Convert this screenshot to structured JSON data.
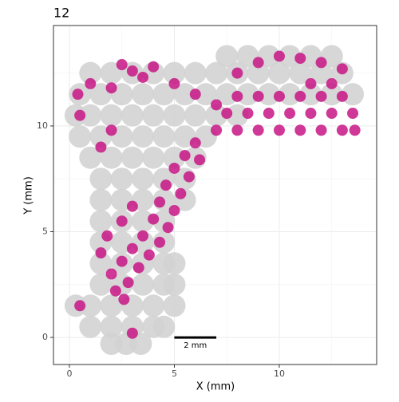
{
  "chart_data": {
    "type": "scatter",
    "title": "12",
    "x_label": "X (mm)",
    "y_label": "Y (mm)",
    "xlim": [
      -0.76,
      14.64
    ],
    "ylim": [
      -1.28,
      14.75
    ],
    "xticks": [
      0,
      5,
      10
    ],
    "yticks": [
      0,
      5,
      10
    ],
    "minor_xticks": [
      2.5,
      7.5,
      12.5
    ],
    "minor_yticks": [
      2.5,
      7.5,
      12.5
    ],
    "grid": true,
    "series": [
      {
        "color": "#d3d3d3",
        "x": [
          7.5,
          8.5,
          9.5,
          10.5,
          11.5,
          12.5,
          1,
          2,
          3,
          4,
          5,
          6,
          7,
          8,
          9,
          10,
          11,
          12,
          13,
          0.5,
          1.5,
          2.5,
          3.5,
          4.5,
          5.5,
          6.5,
          7.5,
          8.5,
          9.5,
          10.5,
          11.5,
          12.5,
          13.5,
          0.3,
          1,
          2,
          3,
          4,
          5,
          6,
          7,
          8,
          0.5,
          1.5,
          2.5,
          3.5,
          4.5,
          5.5,
          6.5,
          1,
          2,
          3,
          4,
          5,
          6,
          1.5,
          2.5,
          3.5,
          4.5,
          5.5,
          1.5,
          2.5,
          3.5,
          4.5,
          5.5,
          1.5,
          2.5,
          3.5,
          4.5,
          1.5,
          2.5,
          3.5,
          4.5,
          1.5,
          2.5,
          3.5,
          4.5,
          5,
          1.5,
          2.5,
          3.5,
          4.5,
          5,
          0.3,
          1,
          2,
          3,
          4,
          5,
          1,
          2,
          3,
          4,
          4.5,
          2,
          2.7,
          3.4
        ],
        "y": [
          13.3,
          13.3,
          13.3,
          13.3,
          13.3,
          13.3,
          12.5,
          12.5,
          12.5,
          12.5,
          12.5,
          12.5,
          12.5,
          12.5,
          12.5,
          12.5,
          12.5,
          12.5,
          12.5,
          11.5,
          11.5,
          11.5,
          11.5,
          11.5,
          11.5,
          11.5,
          11.5,
          11.5,
          11.5,
          11.5,
          11.5,
          11.5,
          11.5,
          10.5,
          10.5,
          10.5,
          10.5,
          10.5,
          10.5,
          10.5,
          10.5,
          10.5,
          9.5,
          9.5,
          9.5,
          9.5,
          9.5,
          9.5,
          9.5,
          8.5,
          8.5,
          8.5,
          8.5,
          8.5,
          8.5,
          7.5,
          7.5,
          7.5,
          7.5,
          7.5,
          6.5,
          6.5,
          6.5,
          6.5,
          6.5,
          5.5,
          5.5,
          5.5,
          5.5,
          4.5,
          4.5,
          4.5,
          4.5,
          3.5,
          3.5,
          3.5,
          3.5,
          3.5,
          2.5,
          2.5,
          2.5,
          2.5,
          2.5,
          1.5,
          1.5,
          1.5,
          1.5,
          1.5,
          1.5,
          0.5,
          0.5,
          0.5,
          0.5,
          0.5,
          -0.3,
          -0.3,
          -0.3
        ]
      },
      {
        "color": "#c71585",
        "x": [
          7,
          8,
          9,
          10,
          11,
          12,
          13,
          13.6,
          7.5,
          8.5,
          9.5,
          10.5,
          11.5,
          12.5,
          13.5,
          8,
          9,
          10,
          11,
          12,
          13,
          11.5,
          12.5,
          6,
          5.5,
          6.2,
          5,
          5.7,
          4.6,
          5.3,
          4.3,
          5,
          4,
          4.7,
          3.5,
          4.3,
          3,
          3.8,
          2.5,
          3.3,
          2,
          2.8,
          2.2,
          2.6,
          1.5,
          1.8,
          2.5,
          3,
          0.5,
          0.4,
          1,
          2,
          3,
          3.5,
          4,
          2.5,
          5,
          6,
          7,
          8,
          9,
          10,
          11,
          12,
          13,
          1.5,
          0.5,
          3,
          2
        ],
        "y": [
          9.8,
          9.8,
          9.8,
          9.8,
          9.8,
          9.8,
          9.8,
          9.8,
          10.6,
          10.6,
          10.6,
          10.6,
          10.6,
          10.6,
          10.6,
          11.4,
          11.4,
          11.4,
          11.4,
          11.4,
          11.4,
          12,
          12,
          9.2,
          8.6,
          8.4,
          8,
          7.6,
          7.2,
          6.8,
          6.4,
          6,
          5.6,
          5.2,
          4.8,
          4.5,
          4.2,
          3.9,
          3.6,
          3.3,
          3,
          2.6,
          2.2,
          1.8,
          4,
          4.8,
          5.5,
          6.2,
          10.5,
          11.5,
          12,
          11.8,
          12.6,
          12.3,
          12.8,
          12.9,
          12,
          11.5,
          11,
          12.5,
          13,
          13.3,
          13.2,
          13,
          12.7,
          9,
          1.5,
          0.2,
          9.8
        ]
      }
    ],
    "scale_bar": {
      "x": [
        5,
        7
      ],
      "y": 0,
      "label": "2 mm"
    }
  }
}
